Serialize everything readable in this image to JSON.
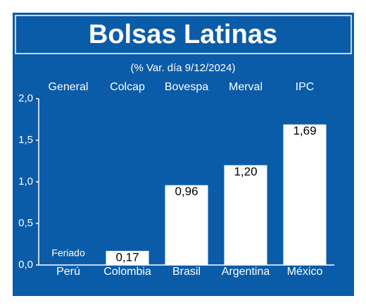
{
  "chart_data": {
    "type": "bar",
    "title": "Bolsas Latinas",
    "subtitle": "(% Var. día 9/12/2024)",
    "index_names": [
      "General",
      "Colcap",
      "Bovespa",
      "Merval",
      "IPC"
    ],
    "categories": [
      "Perú",
      "Colombia",
      "Brasil",
      "Argentina",
      "México"
    ],
    "values": [
      null,
      0.17,
      0.96,
      1.2,
      1.69
    ],
    "value_labels": [
      "Feriado",
      "0,17",
      "0,96",
      "1,20",
      "1,69"
    ],
    "color": "#ffffff",
    "ylim": [
      0,
      2
    ],
    "yticks": [
      {
        "value": 0,
        "label": "0,0"
      },
      {
        "value": 0.5,
        "label": "0,5"
      },
      {
        "value": 1,
        "label": "1,0"
      },
      {
        "value": 1.5,
        "label": "1,5"
      },
      {
        "value": 2,
        "label": "2,0"
      }
    ]
  }
}
